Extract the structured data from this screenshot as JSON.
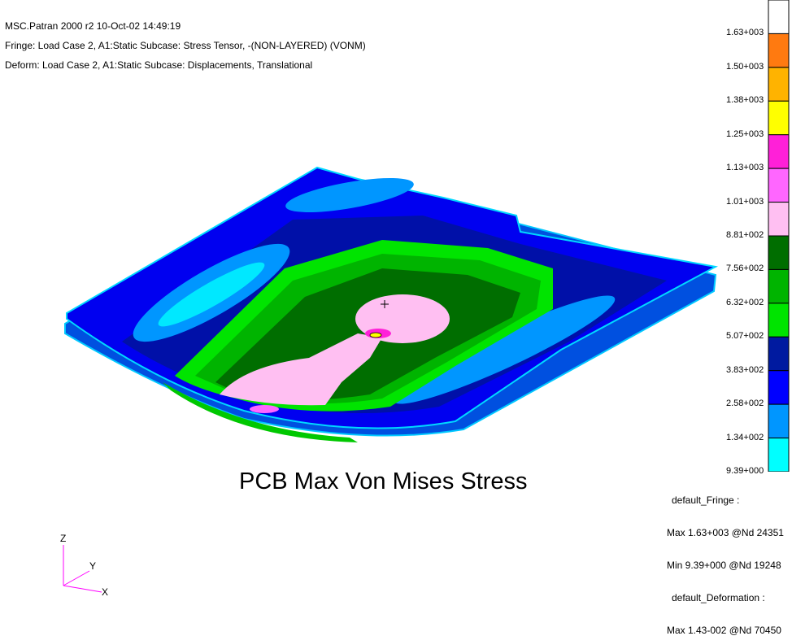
{
  "header": {
    "line1": "MSC.Patran 2000 r2 10-Oct-02 14:49:19",
    "line2": "Fringe: Load Case 2, A1:Static Subcase: Stress Tensor, -(NON-LAYERED) (VONM)",
    "line3": "Deform: Load Case 2, A1:Static Subcase: Displacements, Translational"
  },
  "title": "PCB Max Von Mises Stress",
  "legend": {
    "colors": [
      "#ffffff",
      "#ff7a10",
      "#ffb300",
      "#ffff00",
      "#ff20d8",
      "#ff66ff",
      "#ffbff2",
      "#006e00",
      "#00b400",
      "#00e400",
      "#001aa0",
      "#0000ff",
      "#0096ff",
      "#00ffff"
    ],
    "ticks": [
      "1.63+003",
      "1.50+003",
      "1.38+003",
      "1.25+003",
      "1.13+003",
      "1.01+003",
      "8.81+002",
      "7.56+002",
      "6.32+002",
      "5.07+002",
      "3.83+002",
      "2.58+002",
      "1.34+002",
      "9.39+000"
    ]
  },
  "info": {
    "fringe_title": "default_Fringe :",
    "fringe_max": "Max 1.63+003 @Nd 24351",
    "fringe_min": "Min 9.39+000 @Nd 19248",
    "deform_title": "default_Deformation :",
    "deform_max": "Max 1.43-002 @Nd 70450"
  },
  "triad": {
    "z": "Z",
    "y": "Y",
    "x": "X"
  }
}
